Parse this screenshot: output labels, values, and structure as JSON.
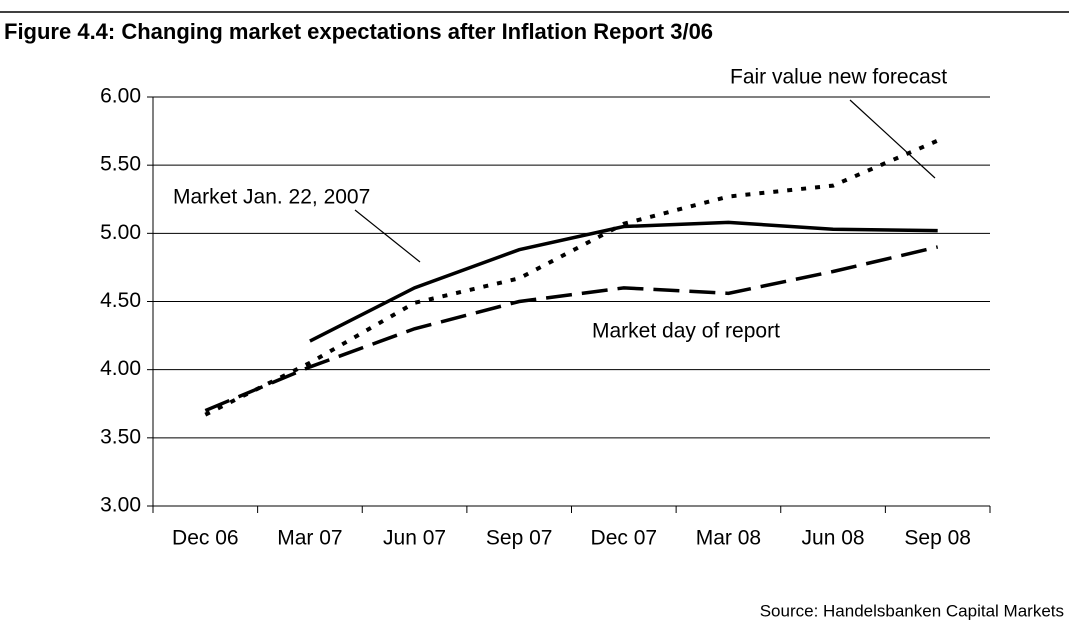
{
  "chart_data": {
    "type": "line",
    "title": "Figure 4.4: Changing market expectations after Inflation Report 3/06",
    "source": "Source: Handelsbanken Capital Markets",
    "categories": [
      "Dec 06",
      "Mar 07",
      "Jun 07",
      "Sep 07",
      "Dec 07",
      "Mar 08",
      "Jun 08",
      "Sep 08"
    ],
    "series": [
      {
        "name": "Fair value new forecast",
        "color": "#000000",
        "dash": "dotted",
        "values": [
          3.67,
          4.05,
          4.49,
          4.67,
          5.07,
          5.27,
          5.35,
          5.68
        ]
      },
      {
        "name": "Market Jan. 22, 2007",
        "color": "#000000",
        "dash": "solid",
        "values": [
          null,
          4.21,
          4.6,
          4.88,
          5.05,
          5.08,
          5.03,
          5.02
        ]
      },
      {
        "name": "Market day of report",
        "color": "#000000",
        "dash": "dashed",
        "values": [
          3.7,
          4.02,
          4.3,
          4.5,
          4.6,
          4.56,
          4.72,
          4.9
        ]
      }
    ],
    "ylim": [
      3,
      6
    ],
    "yticks": [
      {
        "value": 3,
        "label": "3.00"
      },
      {
        "value": 3.5,
        "label": "3.50"
      },
      {
        "value": 4,
        "label": "4.00"
      },
      {
        "value": 4.5,
        "label": "4.50"
      },
      {
        "value": 5,
        "label": "5.00"
      },
      {
        "value": 5.5,
        "label": "5.50"
      },
      {
        "value": 6,
        "label": "6.00"
      }
    ],
    "grid": true
  }
}
